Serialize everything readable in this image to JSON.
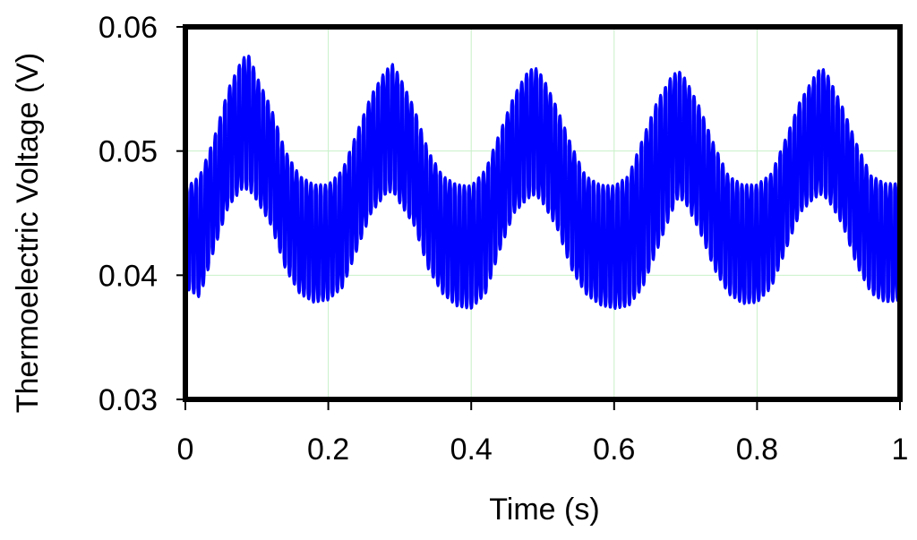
{
  "chart_data": {
    "type": "line",
    "title": "",
    "xlabel": "Time (s)",
    "ylabel": "Thermoelectric Voltage  (V)",
    "xlim": [
      0,
      1
    ],
    "ylim": [
      0.03,
      0.06
    ],
    "x_ticks": [
      "0",
      "0.2",
      "0.4",
      "0.6",
      "0.8",
      "1"
    ],
    "y_ticks": [
      "0.03",
      "0.04",
      "0.05",
      "0.06"
    ],
    "grid": true,
    "colors": {
      "series": "#0000ff",
      "grid": "#c8f0c8",
      "frame": "#000000"
    },
    "signal_description": {
      "mean_v": 0.0465,
      "slow_amplitude_v": 0.0045,
      "slow_period_s": 0.2,
      "fast_amplitude_v": 0.0055,
      "fast_period_s": 0.0067
    },
    "series": [
      {
        "x": [
          0.0,
          0.02,
          0.04,
          0.06,
          0.08,
          0.09,
          0.1,
          0.12,
          0.14,
          0.16,
          0.18,
          0.2,
          0.22,
          0.24,
          0.26,
          0.28,
          0.29,
          0.3,
          0.32,
          0.34,
          0.36,
          0.38,
          0.4,
          0.42,
          0.44,
          0.46,
          0.48,
          0.49,
          0.5,
          0.52,
          0.54,
          0.56,
          0.58,
          0.6,
          0.62,
          0.64,
          0.66,
          0.68,
          0.69,
          0.7,
          0.72,
          0.74,
          0.76,
          0.78,
          0.8,
          0.82,
          0.84,
          0.86,
          0.88,
          0.89,
          0.9,
          0.92,
          0.94,
          0.96,
          0.98,
          1.0
        ],
        "upper": [
          0.047,
          0.048,
          0.051,
          0.055,
          0.0575,
          0.0577,
          0.056,
          0.0535,
          0.05,
          0.048,
          0.0473,
          0.0473,
          0.0485,
          0.0515,
          0.0545,
          0.0565,
          0.057,
          0.056,
          0.0535,
          0.05,
          0.048,
          0.0473,
          0.0472,
          0.0485,
          0.0515,
          0.0545,
          0.0565,
          0.0567,
          0.056,
          0.0535,
          0.0505,
          0.048,
          0.0473,
          0.0472,
          0.048,
          0.051,
          0.054,
          0.056,
          0.0565,
          0.0558,
          0.0535,
          0.0505,
          0.048,
          0.0473,
          0.0473,
          0.0482,
          0.051,
          0.054,
          0.056,
          0.0568,
          0.056,
          0.0535,
          0.0505,
          0.048,
          0.0474,
          0.0474
        ],
        "lower": [
          0.039,
          0.0382,
          0.042,
          0.0455,
          0.047,
          0.0468,
          0.046,
          0.044,
          0.0405,
          0.0385,
          0.0378,
          0.038,
          0.039,
          0.042,
          0.045,
          0.0465,
          0.0468,
          0.0458,
          0.044,
          0.0405,
          0.0385,
          0.0375,
          0.0373,
          0.0385,
          0.042,
          0.045,
          0.0462,
          0.0465,
          0.0458,
          0.0438,
          0.0405,
          0.0385,
          0.0376,
          0.0373,
          0.0375,
          0.039,
          0.042,
          0.045,
          0.0463,
          0.0458,
          0.0435,
          0.0405,
          0.0385,
          0.0377,
          0.0378,
          0.039,
          0.042,
          0.045,
          0.0462,
          0.0465,
          0.046,
          0.044,
          0.0407,
          0.0385,
          0.0378,
          0.038
        ]
      }
    ]
  }
}
